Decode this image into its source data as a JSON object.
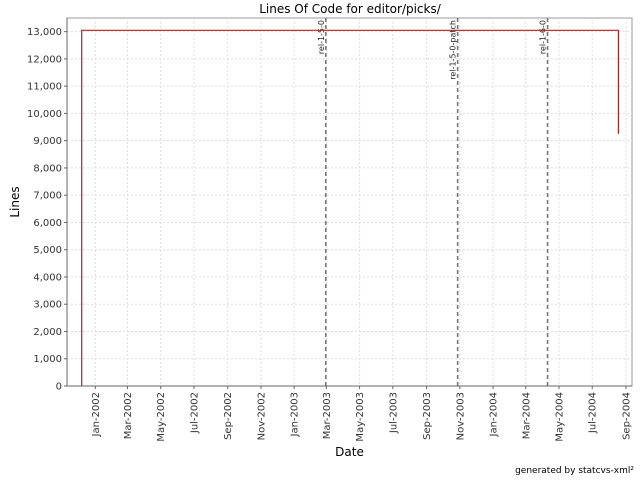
{
  "chart_data": {
    "type": "line",
    "title": "Lines Of Code for editor/picks/",
    "xlabel": "Date",
    "ylabel": "Lines",
    "xlim": [
      "2001-11-10",
      "2004-09-12"
    ],
    "ylim": [
      0,
      13500
    ],
    "yticks": [
      0,
      1000,
      2000,
      3000,
      4000,
      5000,
      6000,
      7000,
      8000,
      9000,
      10000,
      11000,
      12000,
      13000
    ],
    "ytick_labels": [
      "0",
      "1,000",
      "2,000",
      "3,000",
      "4,000",
      "5,000",
      "6,000",
      "7,000",
      "8,000",
      "9,000",
      "10,000",
      "11,000",
      "12,000",
      "13,000"
    ],
    "xticks": [
      "2002-01-01",
      "2002-03-01",
      "2002-05-01",
      "2002-07-01",
      "2002-09-01",
      "2002-11-01",
      "2003-01-01",
      "2003-03-01",
      "2003-05-01",
      "2003-07-01",
      "2003-09-01",
      "2003-11-01",
      "2004-01-01",
      "2004-03-01",
      "2004-05-01",
      "2004-07-01",
      "2004-09-01"
    ],
    "xtick_labels": [
      "Jan-2002",
      "Mar-2002",
      "May-2002",
      "Jul-2002",
      "Sep-2002",
      "Nov-2002",
      "Jan-2003",
      "Mar-2003",
      "May-2003",
      "Jul-2003",
      "Sep-2003",
      "Nov-2003",
      "Jan-2004",
      "Mar-2004",
      "May-2004",
      "Jul-2004",
      "Sep-2004"
    ],
    "grid": true,
    "series": [
      {
        "color": "#b22222",
        "points": [
          {
            "x": "2001-12-07",
            "y": 0
          },
          {
            "x": "2001-12-07",
            "y": 13050
          },
          {
            "x": "2004-08-18",
            "y": 13050
          },
          {
            "x": "2004-08-18",
            "y": 9250
          }
        ]
      }
    ],
    "markers": [
      {
        "label": "rel-1-5-0",
        "x": "2003-02-28"
      },
      {
        "label": "rel-1-5-0-patch",
        "x": "2003-10-28"
      },
      {
        "label": "rel-1-6-0",
        "x": "2004-04-10"
      }
    ]
  },
  "footer": "generated by statcvs-xml²"
}
